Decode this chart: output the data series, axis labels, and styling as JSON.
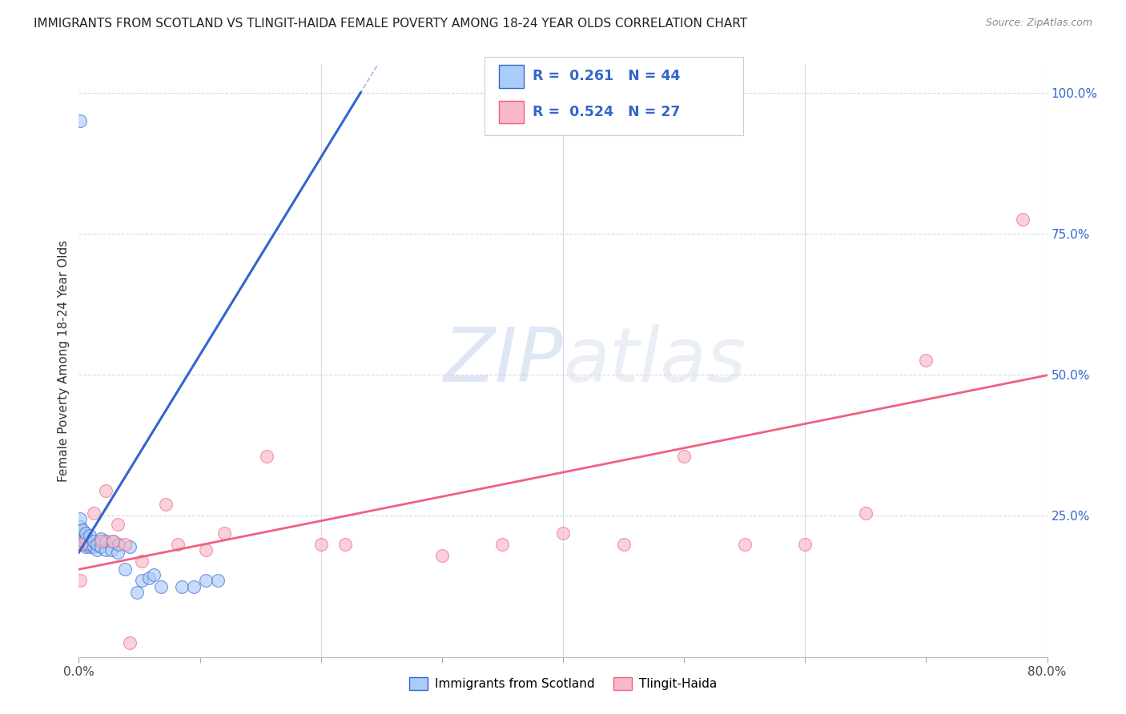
{
  "title": "IMMIGRANTS FROM SCOTLAND VS TLINGIT-HAIDA FEMALE POVERTY AMONG 18-24 YEAR OLDS CORRELATION CHART",
  "source": "Source: ZipAtlas.com",
  "ylabel": "Female Poverty Among 18-24 Year Olds",
  "xlim": [
    0.0,
    0.8
  ],
  "ylim": [
    0.0,
    1.05
  ],
  "xticks": [
    0.0,
    0.1,
    0.2,
    0.3,
    0.4,
    0.5,
    0.6,
    0.7,
    0.8
  ],
  "xticklabels": [
    "0.0%",
    "",
    "",
    "",
    "",
    "",
    "",
    "",
    "80.0%"
  ],
  "ytick_positions": [
    0.0,
    0.25,
    0.5,
    0.75,
    1.0
  ],
  "yticklabels_right": [
    "",
    "25.0%",
    "50.0%",
    "75.0%",
    "100.0%"
  ],
  "R_scotland": 0.261,
  "N_scotland": 44,
  "R_tlingit": 0.524,
  "N_tlingit": 27,
  "scotland_color": "#aaccf8",
  "tlingit_color": "#f8b8c8",
  "scotland_line_color": "#3366cc",
  "tlingit_line_color": "#f06080",
  "legend_text_color": "#3366cc",
  "background_color": "#ffffff",
  "grid_color": "#d8d8e8",
  "watermark_zip": "ZIP",
  "watermark_atlas": "atlas",
  "scotland_x": [
    0.001,
    0.001,
    0.001,
    0.001,
    0.001,
    0.001,
    0.001,
    0.001,
    0.003,
    0.003,
    0.003,
    0.003,
    0.003,
    0.006,
    0.006,
    0.006,
    0.006,
    0.009,
    0.009,
    0.009,
    0.012,
    0.012,
    0.015,
    0.015,
    0.018,
    0.018,
    0.022,
    0.022,
    0.027,
    0.028,
    0.032,
    0.033,
    0.038,
    0.042,
    0.048,
    0.052,
    0.058,
    0.062,
    0.068,
    0.085,
    0.095,
    0.105,
    0.115,
    0.001
  ],
  "scotland_y": [
    0.2,
    0.2,
    0.205,
    0.21,
    0.215,
    0.22,
    0.23,
    0.245,
    0.2,
    0.2,
    0.205,
    0.215,
    0.225,
    0.195,
    0.2,
    0.21,
    0.22,
    0.195,
    0.2,
    0.215,
    0.195,
    0.205,
    0.19,
    0.2,
    0.195,
    0.21,
    0.19,
    0.205,
    0.19,
    0.205,
    0.185,
    0.2,
    0.155,
    0.195,
    0.115,
    0.135,
    0.14,
    0.145,
    0.125,
    0.125,
    0.125,
    0.135,
    0.135,
    0.95
  ],
  "tlingit_x": [
    0.001,
    0.002,
    0.012,
    0.018,
    0.022,
    0.028,
    0.032,
    0.038,
    0.042,
    0.052,
    0.072,
    0.082,
    0.105,
    0.12,
    0.155,
    0.2,
    0.22,
    0.3,
    0.35,
    0.4,
    0.45,
    0.5,
    0.55,
    0.6,
    0.65,
    0.7,
    0.78
  ],
  "tlingit_y": [
    0.135,
    0.2,
    0.255,
    0.205,
    0.295,
    0.205,
    0.235,
    0.2,
    0.025,
    0.17,
    0.27,
    0.2,
    0.19,
    0.22,
    0.355,
    0.2,
    0.2,
    0.18,
    0.2,
    0.22,
    0.2,
    0.355,
    0.2,
    0.2,
    0.255,
    0.525,
    0.775
  ],
  "scotland_line_x0": 0.0,
  "scotland_line_y0": 0.185,
  "scotland_line_slope": 3.5,
  "tlingit_line_x0": 0.0,
  "tlingit_line_y0": 0.155,
  "tlingit_line_slope": 0.43
}
